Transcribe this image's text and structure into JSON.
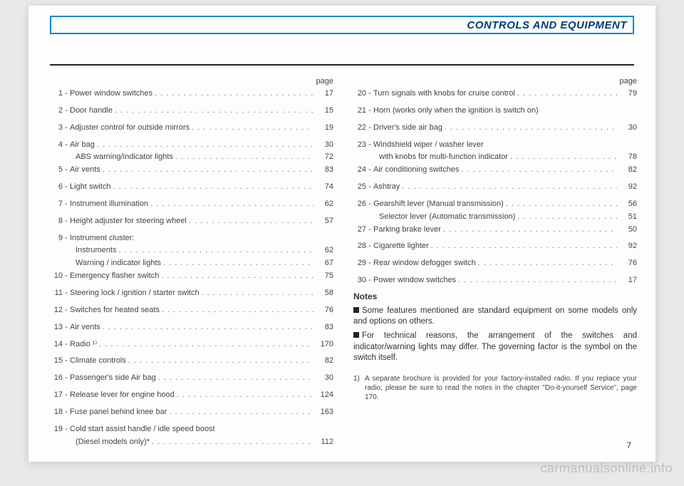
{
  "header": {
    "title": "CONTROLS AND EQUIPMENT"
  },
  "page_label": "page",
  "left": [
    {
      "n": "1",
      "label": "Power window switches",
      "pg": "17"
    },
    {
      "n": "2",
      "label": "Door handle",
      "pg": "15"
    },
    {
      "n": "3",
      "label": "Adjuster control for outside mirrors",
      "pg": "19"
    },
    {
      "n": "4",
      "label": "Air bag",
      "pg": "30"
    },
    {
      "sub": true,
      "label": "ABS warning/indicator lights",
      "pg": "72"
    },
    {
      "n": "5",
      "label": "Air vents",
      "pg": "83"
    },
    {
      "n": "6",
      "label": "Light switch",
      "pg": "74"
    },
    {
      "n": "7",
      "label": "Instrument illumination",
      "pg": "62"
    },
    {
      "n": "8",
      "label": "Height adjuster for steering wheel",
      "pg": "57"
    },
    {
      "n": "9",
      "label": "Instrument cluster:",
      "nopage": true
    },
    {
      "sub": true,
      "label": "Instruments",
      "pg": "62"
    },
    {
      "sub": true,
      "label": "Warning / indicator lights",
      "pg": "67"
    },
    {
      "n": "10",
      "label": "Emergency flasher switch",
      "pg": "75"
    },
    {
      "n": "11",
      "label": "Steering lock / ignition / starter switch",
      "pg": "58"
    },
    {
      "n": "12",
      "label": "Switches for heated seats",
      "pg": "76"
    },
    {
      "n": "13",
      "label": "Air vents",
      "pg": "83"
    },
    {
      "n": "14",
      "label": "Radio ¹⁾",
      "pg": "170"
    },
    {
      "n": "15",
      "label": "Climate controls",
      "pg": "82"
    },
    {
      "n": "16",
      "label": "Passenger's side Air bag",
      "pg": "30"
    },
    {
      "n": "17",
      "label": "Release lever for engine hood",
      "pg": "124"
    },
    {
      "n": "18",
      "label": "Fuse panel behind knee bar",
      "pg": "163"
    },
    {
      "n": "19",
      "label": "Cold start assist handle / idle speed boost",
      "nopage": true
    },
    {
      "sub": true,
      "label": "(Diesel models only)*",
      "pg": "112"
    }
  ],
  "right": [
    {
      "n": "20",
      "label": "Turn signals with knobs for cruise control",
      "pg": "79"
    },
    {
      "n": "21",
      "label": "Horn (works only when the ignition is switch on)",
      "nopage": true
    },
    {
      "n": "22",
      "label": "Driver's side air bag",
      "pg": "30"
    },
    {
      "n": "23",
      "label": "Windshield wiper / washer lever",
      "nopage": true
    },
    {
      "sub": true,
      "label": "with knobs for multi-function indicator",
      "pg": "78"
    },
    {
      "n": "24",
      "label": "Air conditioning switches",
      "pg": "82"
    },
    {
      "n": "25",
      "label": "Ashtray",
      "pg": "92"
    },
    {
      "n": "26",
      "label": "Gearshift lever (Manual transmission)",
      "pg": "56"
    },
    {
      "sub": true,
      "label": "Selector lever (Automatic transmission)",
      "pg": "51"
    },
    {
      "n": "27",
      "label": "Parking brake lever",
      "pg": "50"
    },
    {
      "n": "28",
      "label": "Cigarette lighter",
      "pg": "92"
    },
    {
      "n": "29",
      "label": "Rear window defogger switch",
      "pg": "76"
    },
    {
      "n": "30",
      "label": "Power window switches",
      "pg": "17"
    }
  ],
  "notes": {
    "title": "Notes",
    "p1": "Some features mentioned are standard equipment on some models only and options on others.",
    "p2": "For technical reasons, the arrangement of the switches and indicator/warning lights may differ. The governing factor is the symbol on the switch itself."
  },
  "footnote": {
    "num": "1)",
    "text": "A separate brochure is provided for your factory-installed radio. If you replace your radio, please be sure to read the notes in the chapter \"Do-it-yourself Service\", page 170."
  },
  "pagenum": "7",
  "watermark": "carmanualsonline.info"
}
